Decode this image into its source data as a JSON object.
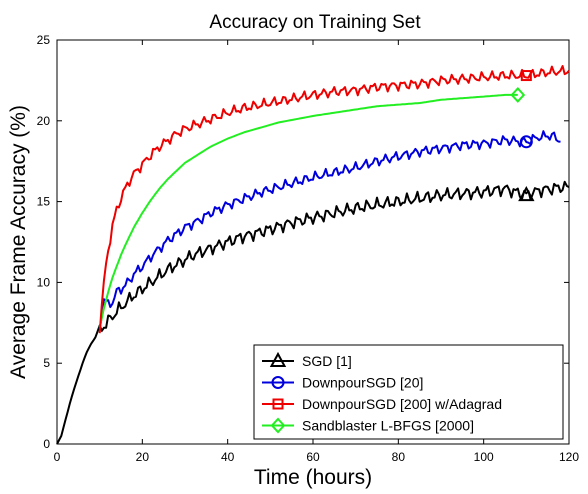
{
  "chart_data": {
    "type": "line",
    "title": "Accuracy on Training Set",
    "xlabel": "Time (hours)",
    "ylabel": "Average Frame Accuracy (%)",
    "xlim": [
      0,
      120
    ],
    "ylim": [
      0,
      25
    ],
    "xticks": [
      0,
      20,
      40,
      60,
      80,
      100,
      120
    ],
    "yticks": [
      0,
      5,
      10,
      15,
      20,
      25
    ],
    "grid": false,
    "legend_position": "bottom-right",
    "series": [
      {
        "name": "SGD [1]",
        "color": "#000000",
        "marker": "triangle",
        "marker_at": [
          110,
          15.4
        ],
        "x": [
          0,
          1,
          2,
          3,
          4,
          5,
          6,
          7,
          8,
          9,
          10,
          12,
          14,
          16,
          18,
          20,
          22,
          24,
          26,
          28,
          30,
          32,
          35,
          38,
          40,
          43,
          46,
          50,
          55,
          60,
          65,
          70,
          75,
          80,
          85,
          90,
          95,
          100,
          105,
          110,
          113,
          116,
          118,
          120
        ],
        "values": [
          0,
          0.5,
          1.5,
          2.5,
          3.4,
          4.2,
          5.0,
          5.7,
          6.2,
          6.6,
          7.0,
          7.6,
          8.2,
          8.7,
          9.2,
          9.6,
          10.0,
          10.4,
          10.8,
          11.1,
          11.4,
          11.7,
          12.0,
          12.3,
          12.5,
          12.8,
          13.0,
          13.3,
          13.7,
          14.0,
          14.3,
          14.6,
          14.8,
          15.0,
          15.2,
          15.4,
          15.5,
          15.6,
          15.8,
          15.4,
          15.7,
          15.8,
          15.9,
          15.9
        ]
      },
      {
        "name": "DownpourSGD [20]",
        "color": "#0000dd",
        "marker": "circle",
        "marker_at": [
          110,
          18.7
        ],
        "x": [
          10,
          11,
          12,
          13,
          14,
          15,
          16,
          18,
          20,
          22,
          24,
          26,
          28,
          30,
          33,
          36,
          40,
          44,
          48,
          52,
          56,
          60,
          65,
          70,
          75,
          80,
          85,
          90,
          95,
          100,
          105,
          110,
          113,
          116,
          118
        ],
        "values": [
          7.2,
          9.0,
          8.6,
          8.8,
          9.4,
          9.6,
          9.8,
          10.5,
          11.0,
          11.6,
          12.1,
          12.6,
          13.0,
          13.4,
          13.8,
          14.3,
          14.8,
          15.2,
          15.6,
          15.9,
          16.2,
          16.5,
          16.8,
          17.1,
          17.5,
          17.8,
          18.1,
          18.3,
          18.5,
          18.6,
          18.8,
          18.7,
          19.0,
          19.1,
          18.7
        ]
      },
      {
        "name": "DownpourSGD [200] w/Adagrad",
        "color": "#ee0000",
        "marker": "square",
        "marker_at": [
          110,
          22.8
        ],
        "x": [
          10,
          11,
          12,
          13,
          14,
          15,
          16,
          17,
          18,
          20,
          22,
          24,
          26,
          28,
          30,
          33,
          36,
          40,
          44,
          48,
          52,
          56,
          60,
          65,
          70,
          75,
          80,
          85,
          90,
          95,
          100,
          105,
          110,
          115,
          120
        ],
        "values": [
          7.2,
          10.0,
          12.0,
          13.5,
          14.5,
          15.2,
          15.8,
          16.3,
          16.7,
          17.3,
          17.9,
          18.4,
          18.8,
          19.2,
          19.5,
          19.8,
          20.1,
          20.5,
          20.8,
          21.0,
          21.2,
          21.4,
          21.6,
          21.8,
          21.9,
          22.1,
          22.2,
          22.3,
          22.5,
          22.6,
          22.7,
          22.8,
          22.8,
          23.0,
          23.1
        ]
      },
      {
        "name": "Sandblaster L-BFGS [2000]",
        "color": "#22ee22",
        "marker": "diamond",
        "marker_at": [
          108,
          21.6
        ],
        "x": [
          10,
          11,
          12,
          13,
          14,
          15,
          16,
          18,
          20,
          22,
          24,
          26,
          28,
          30,
          33,
          36,
          40,
          44,
          48,
          52,
          56,
          60,
          65,
          70,
          75,
          80,
          85,
          90,
          95,
          100,
          105,
          108
        ],
        "values": [
          7.2,
          8.4,
          9.4,
          10.3,
          11.0,
          11.7,
          12.3,
          13.4,
          14.3,
          15.1,
          15.8,
          16.4,
          16.9,
          17.4,
          17.9,
          18.4,
          18.9,
          19.3,
          19.6,
          19.9,
          20.1,
          20.3,
          20.5,
          20.7,
          20.9,
          21.0,
          21.1,
          21.3,
          21.4,
          21.5,
          21.6,
          21.6
        ]
      }
    ]
  }
}
